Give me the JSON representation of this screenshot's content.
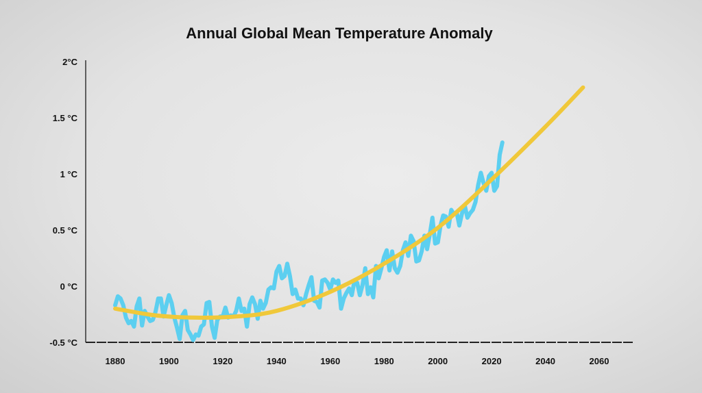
{
  "chart_data": {
    "type": "line",
    "title": "Annual Global Mean Temperature Anomaly",
    "xlabel": "",
    "ylabel": "",
    "xlim": [
      1880,
      2060
    ],
    "ylim": [
      -0.5,
      2
    ],
    "x_ticks": [
      "1880",
      "1900",
      "1920",
      "1940",
      "1960",
      "1980",
      "2000",
      "2020",
      "2040",
      "2060"
    ],
    "y_ticks": [
      {
        "value": 2,
        "label": "2°C"
      },
      {
        "value": 1.5,
        "label": "1.5 °C"
      },
      {
        "value": 1,
        "label": "1 °C"
      },
      {
        "value": 0.5,
        "label": "0.5 °C"
      },
      {
        "value": 0,
        "label": "0 °C"
      },
      {
        "value": -0.5,
        "label": "-0.5 °C"
      }
    ],
    "grid": false,
    "series": [
      {
        "kind": "observed",
        "color": "#5ccff0",
        "x_start": 1880,
        "values": [
          -0.17,
          -0.09,
          -0.11,
          -0.17,
          -0.28,
          -0.33,
          -0.31,
          -0.36,
          -0.18,
          -0.11,
          -0.35,
          -0.22,
          -0.27,
          -0.31,
          -0.3,
          -0.23,
          -0.11,
          -0.11,
          -0.27,
          -0.17,
          -0.08,
          -0.15,
          -0.28,
          -0.37,
          -0.47,
          -0.26,
          -0.22,
          -0.39,
          -0.43,
          -0.48,
          -0.43,
          -0.44,
          -0.36,
          -0.34,
          -0.15,
          -0.14,
          -0.36,
          -0.46,
          -0.3,
          -0.27,
          -0.27,
          -0.19,
          -0.28,
          -0.26,
          -0.27,
          -0.22,
          -0.11,
          -0.22,
          -0.2,
          -0.36,
          -0.16,
          -0.1,
          -0.16,
          -0.29,
          -0.13,
          -0.2,
          -0.15,
          -0.03,
          -0.01,
          -0.02,
          0.13,
          0.18,
          0.07,
          0.09,
          0.2,
          0.09,
          -0.07,
          -0.03,
          -0.11,
          -0.11,
          -0.17,
          -0.07,
          0.01,
          0.08,
          -0.13,
          -0.14,
          -0.19,
          0.05,
          0.06,
          0.03,
          -0.03,
          0.06,
          0.03,
          0.05,
          -0.2,
          -0.11,
          -0.06,
          -0.02,
          -0.08,
          0.05,
          0.03,
          -0.08,
          0.01,
          0.16,
          -0.07,
          -0.01,
          -0.1,
          0.18,
          0.07,
          0.16,
          0.26,
          0.32,
          0.14,
          0.31,
          0.16,
          0.12,
          0.18,
          0.32,
          0.39,
          0.27,
          0.45,
          0.4,
          0.22,
          0.23,
          0.31,
          0.45,
          0.33,
          0.46,
          0.61,
          0.38,
          0.39,
          0.54,
          0.63,
          0.62,
          0.53,
          0.68,
          0.64,
          0.66,
          0.54,
          0.65,
          0.72,
          0.61,
          0.65,
          0.68,
          0.75,
          0.9,
          1.01,
          0.92,
          0.85,
          0.98,
          1.01,
          0.85,
          0.89,
          1.17,
          1.28
        ]
      },
      {
        "kind": "trend",
        "color": "#f0c83a",
        "x": [
          1880,
          1895,
          1910,
          1925,
          1940,
          1960,
          1980,
          2000,
          2020,
          2040,
          2054
        ],
        "values": [
          -0.2,
          -0.26,
          -0.28,
          -0.27,
          -0.22,
          -0.05,
          0.2,
          0.52,
          0.95,
          1.42,
          1.77
        ]
      }
    ]
  }
}
